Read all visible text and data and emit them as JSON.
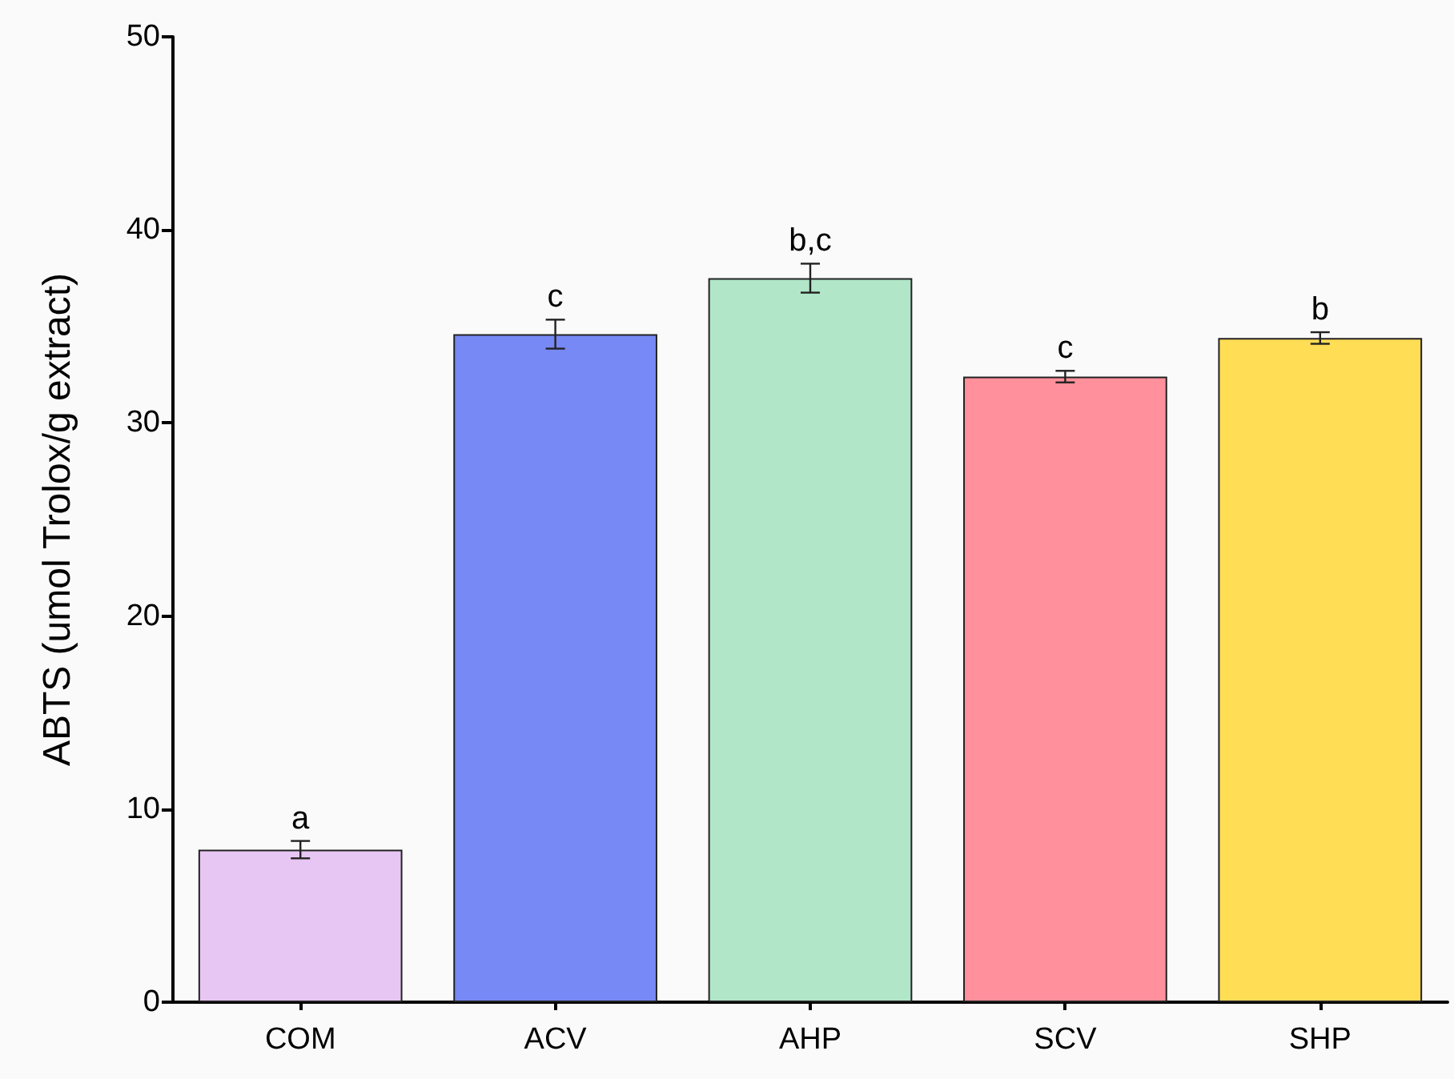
{
  "chart_data": {
    "type": "bar",
    "ylabel": "ABTS (umol Trolox/g extract)",
    "categories": [
      "COM",
      "ACV",
      "AHP",
      "SCV",
      "SHP"
    ],
    "values": [
      7.9,
      34.6,
      37.5,
      32.4,
      34.4
    ],
    "colors": [
      "#e8c6f4",
      "#7689f5",
      "#b1e6c8",
      "#ff909c",
      "#ffdd55"
    ],
    "errors": [
      0.45,
      0.75,
      0.75,
      0.3,
      0.3
    ],
    "ylim": [
      0,
      50
    ],
    "yticks": [
      0,
      10,
      20,
      30,
      40,
      50
    ],
    "grid": false,
    "annotations": [
      {
        "text": "a",
        "x": "COM",
        "y": 8.35
      },
      {
        "text": "c",
        "x": "ACV",
        "y": 35.35
      },
      {
        "text": "b,c",
        "x": "AHP",
        "y": 38.25
      },
      {
        "text": "c",
        "x": "SCV",
        "y": 32.7
      },
      {
        "text": "b",
        "x": "SHP",
        "y": 34.7
      }
    ]
  }
}
